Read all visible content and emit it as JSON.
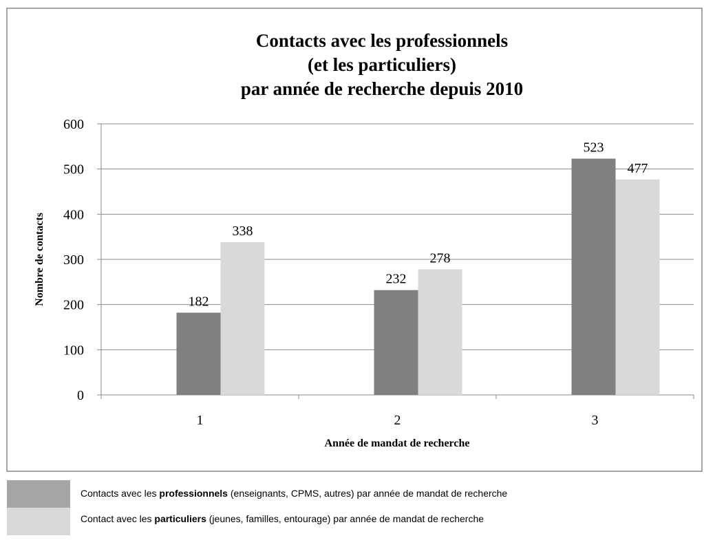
{
  "chart_data": {
    "type": "bar",
    "title": [
      "Contacts avec les professionnels",
      "(et les particuliers)",
      "par année de recherche depuis 2010"
    ],
    "y_label": "Nombre de contacts",
    "x_label": "Année de mandat de recherche",
    "categories": [
      "1",
      "2",
      "3"
    ],
    "series": [
      {
        "name": [
          "Contacts avec les ",
          "professionnels",
          " (enseignants, CPMS, autres) par année de mandat de recherche"
        ],
        "color": "#808080",
        "values": [
          182,
          232,
          523
        ]
      },
      {
        "name": [
          "Contact avec les ",
          "particuliers",
          " (jeunes, familles, entourage) par année de mandat de recherche"
        ],
        "color": "#d9d9d9",
        "values": [
          338,
          278,
          477
        ]
      }
    ],
    "ylim": [
      0,
      600
    ],
    "yticks": [
      0,
      100,
      200,
      300,
      400,
      500,
      600
    ],
    "grid": true
  }
}
